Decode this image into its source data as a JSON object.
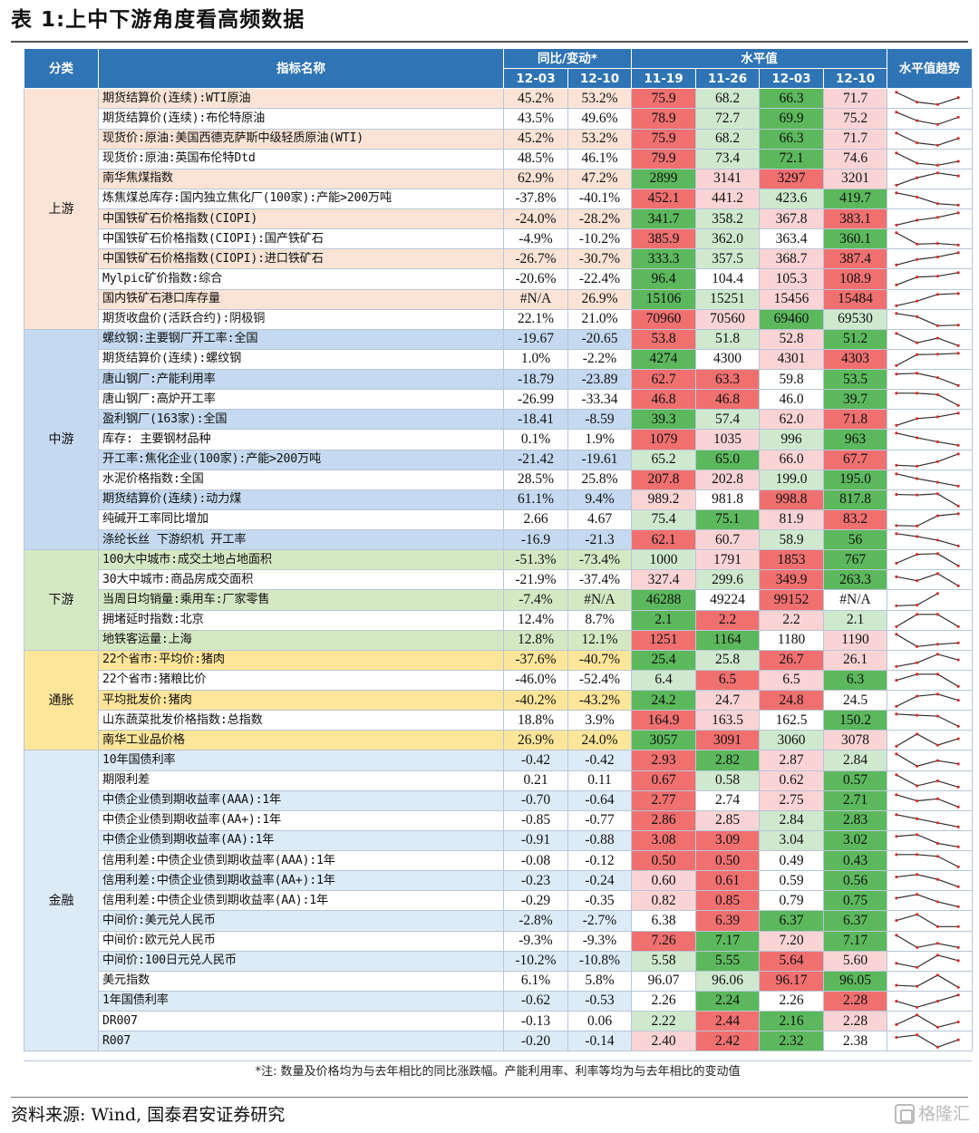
{
  "title": "表 1:上中下游角度看高频数据",
  "headers": {
    "category": "分类",
    "name": "指标名称",
    "yoy_group": "同比/变动*",
    "level_group": "水平值",
    "trend": "水平值趋势",
    "yoy_dates": [
      "12-03",
      "12-10"
    ],
    "level_dates": [
      "11-19",
      "11-26",
      "12-03",
      "12-10"
    ]
  },
  "sections": [
    {
      "key": "up",
      "label": "上游",
      "start": 0,
      "count": 12,
      "color": "#fbe4d6",
      "alt": "#ffffff"
    },
    {
      "key": "mid",
      "label": "中游",
      "start": 12,
      "count": 11,
      "color": "#c5d9f0",
      "alt": "#ffffff"
    },
    {
      "key": "down",
      "label": "下游",
      "start": 23,
      "count": 5,
      "color": "#d5e8c4",
      "alt": "#ffffff"
    },
    {
      "key": "inf",
      "label": "通胀",
      "start": 28,
      "count": 5,
      "color": "#fde59a",
      "alt": "#ffffff"
    },
    {
      "key": "fin",
      "label": "金融",
      "start": 33,
      "count": 15,
      "color": "#ddebf7",
      "alt": "#ffffff"
    }
  ],
  "colors": {
    "red_strong": "#f07070",
    "red_mid": "#f5a0a0",
    "red_light": "#fad4d4",
    "white": "#ffffff",
    "green_light": "#cfe9cf",
    "green_mid": "#8fd08f",
    "green_strong": "#5cb85c",
    "spark_line": "#2b2b2b",
    "spark_dot": "#d62a2a"
  },
  "rows": [
    {
      "name": "期货结算价(连续):WTI原油",
      "yoy": [
        "45.2%",
        "53.2%"
      ],
      "levels": [
        "75.9",
        "68.2",
        "66.3",
        "71.7"
      ],
      "vals": [
        75.9,
        68.2,
        66.3,
        71.7
      ],
      "heat": [
        "rs",
        "gl",
        "gs",
        "rl"
      ]
    },
    {
      "name": "期货结算价(连续):布伦特原油",
      "yoy": [
        "43.5%",
        "49.6%"
      ],
      "levels": [
        "78.9",
        "72.7",
        "69.9",
        "75.2"
      ],
      "vals": [
        78.9,
        72.7,
        69.9,
        75.2
      ],
      "heat": [
        "rs",
        "gl",
        "gs",
        "rl"
      ]
    },
    {
      "name": "现货价:原油:美国西德克萨斯中级轻质原油(WTI)",
      "yoy": [
        "45.2%",
        "53.2%"
      ],
      "levels": [
        "75.9",
        "68.2",
        "66.3",
        "71.7"
      ],
      "vals": [
        75.9,
        68.2,
        66.3,
        71.7
      ],
      "heat": [
        "rs",
        "gl",
        "gs",
        "rl"
      ]
    },
    {
      "name": "现货价:原油:英国布伦特Dtd",
      "yoy": [
        "48.5%",
        "46.1%"
      ],
      "levels": [
        "79.9",
        "73.4",
        "72.1",
        "74.6"
      ],
      "vals": [
        79.9,
        73.4,
        72.1,
        74.6
      ],
      "heat": [
        "rs",
        "gl",
        "gs",
        "rl"
      ]
    },
    {
      "name": "南华焦煤指数",
      "yoy": [
        "62.9%",
        "47.2%"
      ],
      "levels": [
        "2899",
        "3141",
        "3297",
        "3201"
      ],
      "vals": [
        2899,
        3141,
        3297,
        3201
      ],
      "heat": [
        "gs",
        "rl",
        "rs",
        "rl"
      ]
    },
    {
      "name": "炼焦煤总库存:国内独立焦化厂(100家):产能>200万吨",
      "yoy": [
        "-37.8%",
        "-40.1%"
      ],
      "levels": [
        "452.1",
        "441.2",
        "423.6",
        "419.7"
      ],
      "vals": [
        452.1,
        441.2,
        423.6,
        419.7
      ],
      "heat": [
        "rs",
        "rl",
        "gl",
        "gs"
      ]
    },
    {
      "name": "中国铁矿石价格指数(CIOPI)",
      "yoy": [
        "-24.0%",
        "-28.2%"
      ],
      "levels": [
        "341.7",
        "358.2",
        "367.8",
        "383.1"
      ],
      "vals": [
        341.7,
        358.2,
        367.8,
        383.1
      ],
      "heat": [
        "gs",
        "gl",
        "rl",
        "rs"
      ]
    },
    {
      "name": "中国铁矿石价格指数(CIOPI):国产铁矿石",
      "yoy": [
        "-4.9%",
        "-10.2%"
      ],
      "levels": [
        "385.9",
        "362.0",
        "363.4",
        "360.1"
      ],
      "vals": [
        385.9,
        362.0,
        363.4,
        360.1
      ],
      "heat": [
        "rs",
        "gl",
        "wh",
        "gs"
      ]
    },
    {
      "name": "中国铁矿石价格指数(CIOPI):进口铁矿石",
      "yoy": [
        "-26.7%",
        "-30.7%"
      ],
      "levels": [
        "333.3",
        "357.5",
        "368.7",
        "387.4"
      ],
      "vals": [
        333.3,
        357.5,
        368.7,
        387.4
      ],
      "heat": [
        "gs",
        "gl",
        "rl",
        "rs"
      ]
    },
    {
      "name": "Mylpic矿价指数:综合",
      "yoy": [
        "-20.6%",
        "-22.4%"
      ],
      "levels": [
        "96.4",
        "104.4",
        "105.3",
        "108.9"
      ],
      "vals": [
        96.4,
        104.4,
        105.3,
        108.9
      ],
      "heat": [
        "gs",
        "wh",
        "rl",
        "rs"
      ]
    },
    {
      "name": "国内铁矿石港口库存量",
      "yoy": [
        "#N/A",
        "26.9%"
      ],
      "levels": [
        "15106",
        "15251",
        "15456",
        "15484"
      ],
      "vals": [
        15106,
        15251,
        15456,
        15484
      ],
      "heat": [
        "gs",
        "gl",
        "rl",
        "rs"
      ]
    },
    {
      "name": "期货收盘价(活跃合约):阴极铜",
      "yoy": [
        "22.1%",
        "21.0%"
      ],
      "levels": [
        "70960",
        "70560",
        "69460",
        "69530"
      ],
      "vals": [
        70960,
        70560,
        69460,
        69530
      ],
      "heat": [
        "rs",
        "rl",
        "gs",
        "gl"
      ]
    },
    {
      "name": "螺纹钢:主要钢厂开工率:全国",
      "yoy": [
        "-19.67",
        "-20.65"
      ],
      "levels": [
        "53.8",
        "51.8",
        "52.8",
        "51.2"
      ],
      "vals": [
        53.8,
        51.8,
        52.8,
        51.2
      ],
      "heat": [
        "rs",
        "gl",
        "rl",
        "gs"
      ]
    },
    {
      "name": "期货结算价(连续):螺纹钢",
      "yoy": [
        "1.0%",
        "-2.2%"
      ],
      "levels": [
        "4274",
        "4300",
        "4301",
        "4303"
      ],
      "vals": [
        4274,
        4300,
        4301,
        4303
      ],
      "heat": [
        "gs",
        "wh",
        "rl",
        "rs"
      ]
    },
    {
      "name": "唐山钢厂:产能利用率",
      "yoy": [
        "-18.79",
        "-23.89"
      ],
      "levels": [
        "62.7",
        "63.3",
        "59.8",
        "53.5"
      ],
      "vals": [
        62.7,
        63.3,
        59.8,
        53.5
      ],
      "heat": [
        "rs",
        "rs",
        "wh",
        "gs"
      ]
    },
    {
      "name": "唐山钢厂:高炉开工率",
      "yoy": [
        "-26.99",
        "-33.34"
      ],
      "levels": [
        "46.8",
        "46.8",
        "46.0",
        "39.7"
      ],
      "vals": [
        46.8,
        46.8,
        46.0,
        39.7
      ],
      "heat": [
        "rs",
        "rs",
        "wh",
        "gs"
      ]
    },
    {
      "name": "盈利钢厂(163家):全国",
      "yoy": [
        "-18.41",
        "-8.59"
      ],
      "levels": [
        "39.3",
        "57.4",
        "62.0",
        "71.8"
      ],
      "vals": [
        39.3,
        57.4,
        62.0,
        71.8
      ],
      "heat": [
        "gs",
        "gl",
        "rl",
        "rs"
      ]
    },
    {
      "name": "库存: 主要钢材品种",
      "yoy": [
        "0.1%",
        "1.9%"
      ],
      "levels": [
        "1079",
        "1035",
        "996",
        "963"
      ],
      "vals": [
        1079,
        1035,
        996,
        963
      ],
      "heat": [
        "rs",
        "rl",
        "gl",
        "gs"
      ]
    },
    {
      "name": "开工率:焦化企业(100家):产能>200万吨",
      "yoy": [
        "-21.42",
        "-19.61"
      ],
      "levels": [
        "65.2",
        "65.0",
        "66.0",
        "67.7"
      ],
      "vals": [
        65.2,
        65.0,
        66.0,
        67.7
      ],
      "heat": [
        "gl",
        "gs",
        "rl",
        "rs"
      ]
    },
    {
      "name": "水泥价格指数:全国",
      "yoy": [
        "28.5%",
        "25.8%"
      ],
      "levels": [
        "207.8",
        "202.8",
        "199.0",
        "195.0"
      ],
      "vals": [
        207.8,
        202.8,
        199.0,
        195.0
      ],
      "heat": [
        "rs",
        "rl",
        "gl",
        "gs"
      ]
    },
    {
      "name": "期货结算价(连续):动力煤",
      "yoy": [
        "61.1%",
        "9.4%"
      ],
      "levels": [
        "989.2",
        "981.8",
        "998.8",
        "817.8"
      ],
      "vals": [
        989.2,
        981.8,
        998.8,
        817.8
      ],
      "heat": [
        "rl",
        "wh",
        "rs",
        "gs"
      ]
    },
    {
      "name": "纯碱开工率同比增加",
      "yoy": [
        "2.66",
        "4.67"
      ],
      "levels": [
        "75.4",
        "75.1",
        "81.9",
        "83.2"
      ],
      "vals": [
        75.4,
        75.1,
        81.9,
        83.2
      ],
      "heat": [
        "gl",
        "gs",
        "rl",
        "rs"
      ]
    },
    {
      "name": "涤纶长丝 下游织机 开工率",
      "yoy": [
        "-16.9",
        "-21.3"
      ],
      "levels": [
        "62.1",
        "60.7",
        "58.9",
        "56"
      ],
      "vals": [
        62.1,
        60.7,
        58.9,
        56
      ],
      "heat": [
        "rs",
        "rl",
        "gl",
        "gs"
      ]
    },
    {
      "name": "100大中城市:成交土地占地面积",
      "yoy": [
        "-51.3%",
        "-73.4%"
      ],
      "levels": [
        "1000",
        "1791",
        "1853",
        "767"
      ],
      "vals": [
        1000,
        1791,
        1853,
        767
      ],
      "heat": [
        "gl",
        "rl",
        "rs",
        "gs"
      ]
    },
    {
      "name": "30大中城市:商品房成交面积",
      "yoy": [
        "-21.9%",
        "-37.4%"
      ],
      "levels": [
        "327.4",
        "299.6",
        "349.9",
        "263.3"
      ],
      "vals": [
        327.4,
        299.6,
        349.9,
        263.3
      ],
      "heat": [
        "rl",
        "gl",
        "rs",
        "gs"
      ]
    },
    {
      "name": "当周日均销量:乘用车:厂家零售",
      "yoy": [
        "-7.4%",
        "#N/A"
      ],
      "levels": [
        "46288",
        "49224",
        "99152",
        "#N/A"
      ],
      "vals": [
        46288,
        49224,
        99152,
        null
      ],
      "heat": [
        "gs",
        "wh",
        "rs",
        "wh"
      ]
    },
    {
      "name": "拥堵延时指数:北京",
      "yoy": [
        "12.4%",
        "8.7%"
      ],
      "levels": [
        "2.1",
        "2.2",
        "2.2",
        "2.1"
      ],
      "vals": [
        2.1,
        2.2,
        2.2,
        2.1
      ],
      "heat": [
        "gs",
        "rs",
        "rl",
        "gl"
      ]
    },
    {
      "name": "地铁客运量:上海",
      "yoy": [
        "12.8%",
        "12.1%"
      ],
      "levels": [
        "1251",
        "1164",
        "1180",
        "1190"
      ],
      "vals": [
        1251,
        1164,
        1180,
        1190
      ],
      "heat": [
        "rs",
        "gs",
        "wh",
        "rl"
      ]
    },
    {
      "name": "22个省市:平均价:猪肉",
      "yoy": [
        "-37.6%",
        "-40.7%"
      ],
      "levels": [
        "25.4",
        "25.8",
        "26.7",
        "26.1"
      ],
      "vals": [
        25.4,
        25.8,
        26.7,
        26.1
      ],
      "heat": [
        "gs",
        "gl",
        "rs",
        "rl"
      ]
    },
    {
      "name": "22个省市:猪粮比价",
      "yoy": [
        "-46.0%",
        "-52.4%"
      ],
      "levels": [
        "6.4",
        "6.5",
        "6.5",
        "6.3"
      ],
      "vals": [
        6.4,
        6.5,
        6.5,
        6.3
      ],
      "heat": [
        "gl",
        "rs",
        "rl",
        "gs"
      ]
    },
    {
      "name": "平均批发价:猪肉",
      "yoy": [
        "-40.2%",
        "-43.2%"
      ],
      "levels": [
        "24.2",
        "24.7",
        "24.8",
        "24.5"
      ],
      "vals": [
        24.2,
        24.7,
        24.8,
        24.5
      ],
      "heat": [
        "gs",
        "rl",
        "rs",
        "wh"
      ]
    },
    {
      "name": "山东蔬菜批发价格指数:总指数",
      "yoy": [
        "18.8%",
        "3.9%"
      ],
      "levels": [
        "164.9",
        "163.5",
        "162.5",
        "150.2"
      ],
      "vals": [
        164.9,
        163.5,
        162.5,
        150.2
      ],
      "heat": [
        "rs",
        "rl",
        "wh",
        "gs"
      ]
    },
    {
      "name": "南华工业品价格",
      "yoy": [
        "26.9%",
        "24.0%"
      ],
      "levels": [
        "3057",
        "3091",
        "3060",
        "3078"
      ],
      "vals": [
        3057,
        3091,
        3060,
        3078
      ],
      "heat": [
        "gs",
        "rs",
        "gl",
        "rl"
      ]
    },
    {
      "name": "10年国债利率",
      "yoy": [
        "-0.42",
        "-0.42"
      ],
      "levels": [
        "2.93",
        "2.82",
        "2.87",
        "2.84"
      ],
      "vals": [
        2.93,
        2.82,
        2.87,
        2.84
      ],
      "heat": [
        "rs",
        "gs",
        "rl",
        "gl"
      ]
    },
    {
      "name": "期限利差",
      "yoy": [
        "0.21",
        "0.11"
      ],
      "levels": [
        "0.67",
        "0.58",
        "0.62",
        "0.57"
      ],
      "vals": [
        0.67,
        0.58,
        0.62,
        0.57
      ],
      "heat": [
        "rs",
        "gl",
        "rl",
        "gs"
      ]
    },
    {
      "name": "中债企业债到期收益率(AAA):1年",
      "yoy": [
        "-0.70",
        "-0.64"
      ],
      "levels": [
        "2.77",
        "2.74",
        "2.75",
        "2.71"
      ],
      "vals": [
        2.77,
        2.74,
        2.75,
        2.71
      ],
      "heat": [
        "rs",
        "wh",
        "rl",
        "gs"
      ]
    },
    {
      "name": "中债企业债到期收益率(AA+):1年",
      "yoy": [
        "-0.85",
        "-0.77"
      ],
      "levels": [
        "2.86",
        "2.85",
        "2.84",
        "2.83"
      ],
      "vals": [
        2.86,
        2.85,
        2.84,
        2.83
      ],
      "heat": [
        "rs",
        "rl",
        "gl",
        "gs"
      ]
    },
    {
      "name": "中债企业债到期收益率(AA):1年",
      "yoy": [
        "-0.91",
        "-0.88"
      ],
      "levels": [
        "3.08",
        "3.09",
        "3.04",
        "3.02"
      ],
      "vals": [
        3.08,
        3.09,
        3.04,
        3.02
      ],
      "heat": [
        "rs",
        "rs",
        "gl",
        "gs"
      ]
    },
    {
      "name": "信用利差:中债企业债到期收益率(AAA):1年",
      "yoy": [
        "-0.08",
        "-0.12"
      ],
      "levels": [
        "0.50",
        "0.50",
        "0.49",
        "0.43"
      ],
      "vals": [
        0.5,
        0.5,
        0.49,
        0.43
      ],
      "heat": [
        "rs",
        "rs",
        "wh",
        "gs"
      ]
    },
    {
      "name": "信用利差:中债企业债到期收益率(AA+):1年",
      "yoy": [
        "-0.23",
        "-0.24"
      ],
      "levels": [
        "0.60",
        "0.61",
        "0.59",
        "0.56"
      ],
      "vals": [
        0.6,
        0.61,
        0.59,
        0.56
      ],
      "heat": [
        "rl",
        "rs",
        "wh",
        "gs"
      ]
    },
    {
      "name": "信用利差:中债企业债到期收益率(AA):1年",
      "yoy": [
        "-0.29",
        "-0.35"
      ],
      "levels": [
        "0.82",
        "0.85",
        "0.79",
        "0.75"
      ],
      "vals": [
        0.82,
        0.85,
        0.79,
        0.75
      ],
      "heat": [
        "rl",
        "rs",
        "wh",
        "gs"
      ]
    },
    {
      "name": "中间价:美元兑人民币",
      "yoy": [
        "-2.8%",
        "-2.7%"
      ],
      "levels": [
        "6.38",
        "6.39",
        "6.37",
        "6.37"
      ],
      "vals": [
        6.38,
        6.39,
        6.37,
        6.37
      ],
      "heat": [
        "wh",
        "rs",
        "gs",
        "gs"
      ]
    },
    {
      "name": "中间价:欧元兑人民币",
      "yoy": [
        "-9.3%",
        "-9.3%"
      ],
      "levels": [
        "7.26",
        "7.17",
        "7.20",
        "7.17"
      ],
      "vals": [
        7.26,
        7.17,
        7.2,
        7.17
      ],
      "heat": [
        "rs",
        "gs",
        "rl",
        "gs"
      ]
    },
    {
      "name": "中间价:100日元兑人民币",
      "yoy": [
        "-10.2%",
        "-10.8%"
      ],
      "levels": [
        "5.58",
        "5.55",
        "5.64",
        "5.60"
      ],
      "vals": [
        5.58,
        5.55,
        5.64,
        5.6
      ],
      "heat": [
        "gl",
        "gs",
        "rs",
        "rl"
      ]
    },
    {
      "name": "美元指数",
      "yoy": [
        "6.1%",
        "5.8%"
      ],
      "levels": [
        "96.07",
        "96.06",
        "96.17",
        "96.05"
      ],
      "vals": [
        96.07,
        96.06,
        96.17,
        96.05
      ],
      "heat": [
        "wh",
        "gl",
        "rs",
        "gs"
      ]
    },
    {
      "name": "1年国债利率",
      "yoy": [
        "-0.62",
        "-0.53"
      ],
      "levels": [
        "2.26",
        "2.24",
        "2.26",
        "2.28"
      ],
      "vals": [
        2.26,
        2.24,
        2.26,
        2.28
      ],
      "heat": [
        "wh",
        "gs",
        "wh",
        "rs"
      ]
    },
    {
      "name": "DR007",
      "yoy": [
        "-0.13",
        "0.06"
      ],
      "levels": [
        "2.22",
        "2.44",
        "2.16",
        "2.28"
      ],
      "vals": [
        2.22,
        2.44,
        2.16,
        2.28
      ],
      "heat": [
        "gl",
        "rs",
        "gs",
        "rl"
      ]
    },
    {
      "name": "R007",
      "yoy": [
        "-0.20",
        "-0.14"
      ],
      "levels": [
        "2.40",
        "2.42",
        "2.32",
        "2.38"
      ],
      "vals": [
        2.4,
        2.42,
        2.32,
        2.38
      ],
      "heat": [
        "rl",
        "rs",
        "gs",
        "wh"
      ]
    }
  ],
  "note": "*注: 数量及价格均为与去年相比的同比涨跌幅。产能利用率、利率等均为与去年相比的变动值",
  "source": "资料来源: Wind, 国泰君安证券研究",
  "watermark": "格隆汇"
}
